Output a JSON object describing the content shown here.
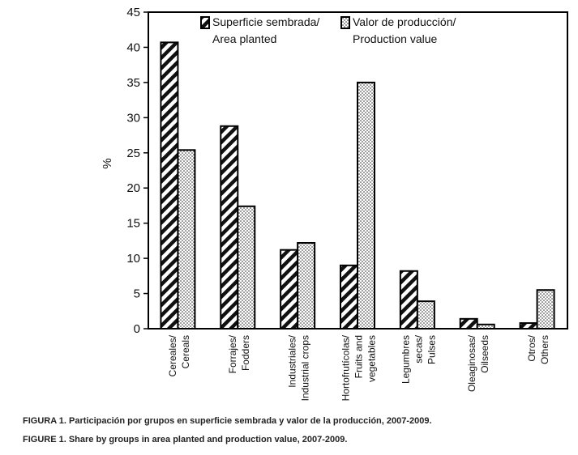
{
  "chart_data": {
    "type": "bar",
    "ylabel": "%",
    "ylim": [
      0,
      45
    ],
    "yticks": [
      0,
      5,
      10,
      15,
      20,
      25,
      30,
      35,
      40,
      45
    ],
    "grid": false,
    "legend_position": "top",
    "categories": [
      [
        "Cereales/",
        "Cereals"
      ],
      [
        "Forrajes/",
        "Fodders"
      ],
      [
        "Industriales/",
        "Industrial crops"
      ],
      [
        "Hortofrutícolas/",
        "Fruits and",
        "vegetables"
      ],
      [
        "Legumbres",
        "secas/",
        "Pulses"
      ],
      [
        "Oleaginosas/",
        "Oilseeds"
      ],
      [
        "Otros/",
        "Others"
      ]
    ],
    "series": [
      {
        "name": [
          "Superficie sembrada/",
          "Area planted"
        ],
        "pattern": "diagonal-hatch",
        "values": [
          40.7,
          28.8,
          11.2,
          9.0,
          8.2,
          1.4,
          0.8
        ]
      },
      {
        "name": [
          "Valor de producción/",
          "Production value"
        ],
        "pattern": "dots",
        "values": [
          25.4,
          17.4,
          12.2,
          35.0,
          3.9,
          0.6,
          5.5
        ]
      }
    ]
  },
  "captions": {
    "es": "FIGURA 1. Participación por grupos en superficie sembrada y valor de la producción, 2007-2009.",
    "en": "FIGURE 1. Share by groups in area planted and production value, 2007-2009."
  }
}
